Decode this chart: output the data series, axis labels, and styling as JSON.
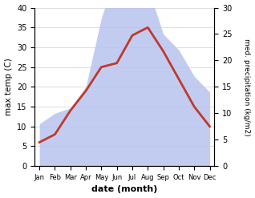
{
  "months": [
    "Jan",
    "Feb",
    "Mar",
    "Apr",
    "May",
    "Jun",
    "Jul",
    "Aug",
    "Sep",
    "Oct",
    "Nov",
    "Dec"
  ],
  "temp": [
    6,
    8,
    14,
    19,
    25,
    26,
    33,
    35,
    29,
    22,
    15,
    10
  ],
  "precip": [
    8,
    10,
    11,
    15,
    28,
    37,
    35,
    34,
    25,
    22,
    17,
    14
  ],
  "temp_color": "#c0392b",
  "precip_fill_color": "#b8c4ef",
  "xlabel": "date (month)",
  "ylabel_left": "max temp (C)",
  "ylabel_right": "med. precipitation (kg/m2)",
  "ylim_left": [
    0,
    40
  ],
  "ylim_right": [
    0,
    30
  ],
  "bg_color": "#ffffff",
  "scale_factor": 1.3333
}
